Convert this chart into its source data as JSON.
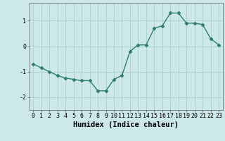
{
  "x": [
    0,
    1,
    2,
    3,
    4,
    5,
    6,
    7,
    8,
    9,
    10,
    11,
    12,
    13,
    14,
    15,
    16,
    17,
    18,
    19,
    20,
    21,
    22,
    23
  ],
  "y": [
    -0.7,
    -0.85,
    -1.0,
    -1.15,
    -1.25,
    -1.3,
    -1.35,
    -1.35,
    -1.75,
    -1.75,
    -1.3,
    -1.15,
    -0.2,
    0.05,
    0.05,
    0.7,
    0.8,
    1.3,
    1.3,
    0.9,
    0.9,
    0.85,
    0.3,
    0.05
  ],
  "xlabel": "Humidex (Indice chaleur)",
  "xlim": [
    -0.5,
    23.5
  ],
  "ylim": [
    -2.5,
    1.7
  ],
  "yticks": [
    -2,
    -1,
    0,
    1
  ],
  "xticks": [
    0,
    1,
    2,
    3,
    4,
    5,
    6,
    7,
    8,
    9,
    10,
    11,
    12,
    13,
    14,
    15,
    16,
    17,
    18,
    19,
    20,
    21,
    22,
    23
  ],
  "line_color": "#2d7d6e",
  "marker": "D",
  "marker_size": 2.5,
  "line_width": 1.0,
  "bg_color": "#cce8e8",
  "grid_color": "#aacece",
  "tick_fontsize": 6.0,
  "xlabel_fontsize": 7.5
}
